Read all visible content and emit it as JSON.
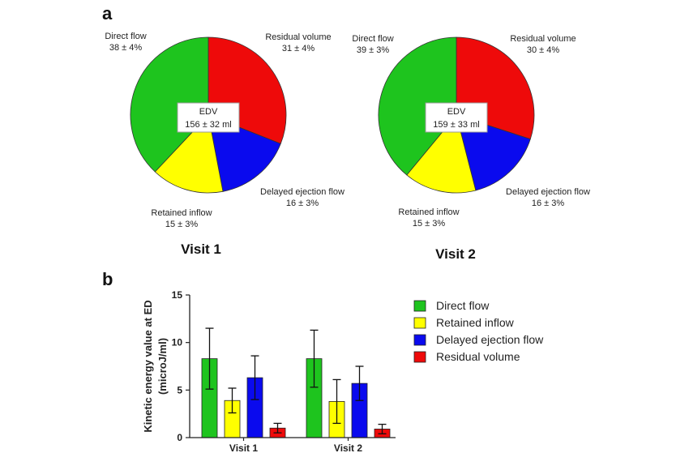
{
  "panels": {
    "a": "a",
    "b": "b"
  },
  "pie_center_label": "EDV",
  "colors": {
    "direct_flow": "#1ec41e",
    "retained_inflow": "#ffff00",
    "delayed_ejection_flow": "#0a0aee",
    "residual_volume": "#ee0a0a"
  },
  "chart_data": [
    {
      "type": "pie",
      "title": "Visit 1",
      "center_text": "156 ± 32 ml",
      "slices": [
        {
          "name": "Residual volume",
          "value": 31,
          "label": "31 ± 4%",
          "color": "#ee0a0a"
        },
        {
          "name": "Delayed ejection flow",
          "value": 16,
          "label": "16 ± 3%",
          "color": "#0a0aee"
        },
        {
          "name": "Retained inflow",
          "value": 15,
          "label": "15 ± 3%",
          "color": "#ffff00"
        },
        {
          "name": "Direct flow",
          "value": 38,
          "label": "38 ± 4%",
          "color": "#1ec41e"
        }
      ]
    },
    {
      "type": "pie",
      "title": "Visit 2",
      "center_text": "159 ± 33 ml",
      "slices": [
        {
          "name": "Residual volume",
          "value": 30,
          "label": "30 ± 4%",
          "color": "#ee0a0a"
        },
        {
          "name": "Delayed ejection flow",
          "value": 16,
          "label": "16 ± 3%",
          "color": "#0a0aee"
        },
        {
          "name": "Retained inflow",
          "value": 15,
          "label": "15 ± 3%",
          "color": "#ffff00"
        },
        {
          "name": "Direct flow",
          "value": 39,
          "label": "39 ± 3%",
          "color": "#1ec41e"
        }
      ]
    },
    {
      "type": "bar",
      "categories": [
        "Visit 1",
        "Visit 2"
      ],
      "ylabel": "Kinetic energy value at ED (microJ/ml)",
      "ylim": [
        0,
        15
      ],
      "yticks": [
        "0",
        "5",
        "10",
        "15"
      ],
      "legend_position": "right",
      "series": [
        {
          "name": "Direct flow",
          "values": [
            8.3,
            8.3
          ],
          "errors": [
            3.2,
            3.0
          ],
          "color": "#1ec41e"
        },
        {
          "name": "Retained inflow",
          "values": [
            3.9,
            3.8
          ],
          "errors": [
            1.3,
            2.3
          ],
          "color": "#ffff00"
        },
        {
          "name": "Delayed ejection flow",
          "values": [
            6.3,
            5.7
          ],
          "errors": [
            2.3,
            1.8
          ],
          "color": "#0a0aee"
        },
        {
          "name": "Residual volume",
          "values": [
            1.0,
            0.9
          ],
          "errors": [
            0.5,
            0.5
          ],
          "color": "#ee0a0a"
        }
      ]
    }
  ]
}
